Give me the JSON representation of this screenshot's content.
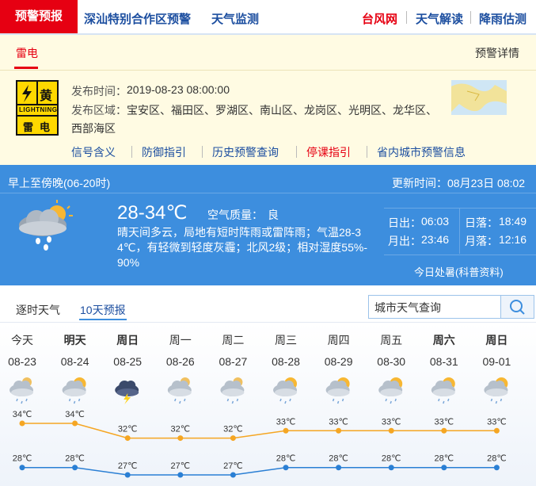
{
  "nav": {
    "active": "预警预报",
    "links": [
      "深汕特别合作区预警",
      "天气监测"
    ],
    "right": [
      "台风网",
      "天气解读",
      "降雨估测"
    ]
  },
  "warning": {
    "tab": "雷电",
    "detail": "预警详情",
    "icon_level": "黄",
    "icon_en": "LIGHTNING",
    "icon_cn": "雷电",
    "time_label": "发布时间：",
    "time": "2019-08-23 08:00:00",
    "area_label": "发布区域：",
    "area": "宝安区、福田区、罗湖区、南山区、龙岗区、光明区、龙华区、",
    "area2": "西部海区",
    "links": [
      "信号含义",
      "防御指引",
      "历史预警查询",
      "停课指引",
      "省内城市预警信息"
    ]
  },
  "today": {
    "period": "早上至傍晚(06-20时)",
    "update_label": "更新时间：",
    "update": "08月23日 08:02",
    "temp": "28-34℃",
    "aqi_label": "空气质量：",
    "aqi": "良",
    "desc": "晴天间多云，局地有短时阵雨或雷阵雨；气温28-34℃，有轻微到轻度灰霾；北风2级；相对湿度55%-90%",
    "sunrise_label": "日出：",
    "sunrise": "06:03",
    "sunset_label": "日落：",
    "sunset": "18:49",
    "moonrise_label": "月出：",
    "moonrise": "23:46",
    "moonset_label": "月落：",
    "moonset": "12:16",
    "solar_term": "今日处暑(科普资料)"
  },
  "tabs": [
    "逐时天气",
    "10天预报"
  ],
  "search": {
    "placeholder": "城市天气查询"
  },
  "forecast": {
    "days": [
      "今天",
      "明天",
      "周日",
      "周一",
      "周二",
      "周三",
      "周四",
      "周五",
      "周六",
      "周日"
    ],
    "dates": [
      "08-23",
      "08-24",
      "08-25",
      "08-26",
      "08-27",
      "08-28",
      "08-29",
      "08-30",
      "08-31",
      "09-01"
    ],
    "highs": [
      34,
      34,
      32,
      32,
      32,
      33,
      33,
      33,
      33,
      33
    ],
    "high_labels": [
      "34℃",
      "34℃",
      "32℃",
      "32℃",
      "32℃",
      "33℃",
      "33℃",
      "33℃",
      "33℃",
      "33℃"
    ],
    "lows": [
      28,
      28,
      27,
      27,
      27,
      28,
      28,
      28,
      28,
      28
    ],
    "low_labels": [
      "28℃",
      "28℃",
      "27℃",
      "27℃",
      "27℃",
      "28℃",
      "28℃",
      "28℃",
      "28℃",
      "28℃"
    ],
    "high_color": "#f5a623",
    "low_color": "#2a7fd4"
  }
}
